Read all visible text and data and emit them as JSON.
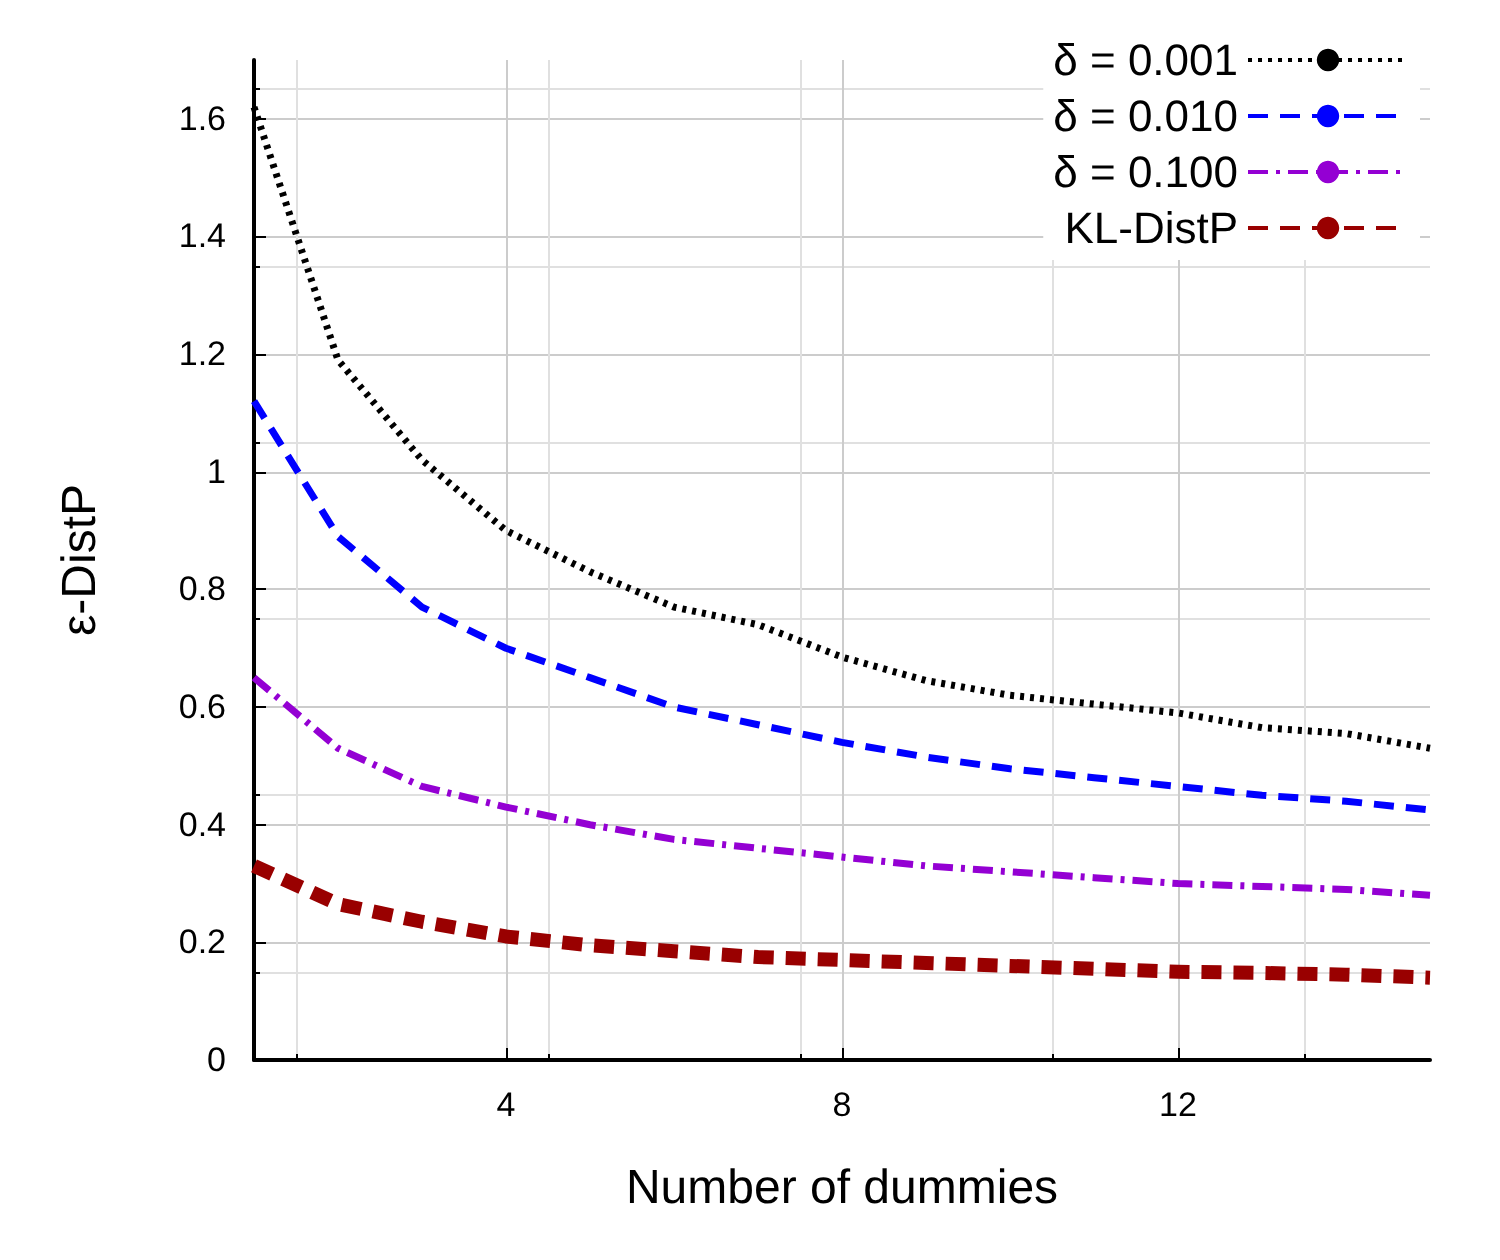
{
  "chart_data": {
    "type": "line",
    "xlabel": "Number of dummies",
    "ylabel": "ε-DistP",
    "x": [
      1,
      2,
      3,
      4,
      5,
      6,
      7,
      8,
      9,
      10,
      11,
      12,
      13,
      14,
      15
    ],
    "series": [
      {
        "name": "δ = 0.001",
        "color": "#000000",
        "line_style": "dotted",
        "values": [
          1.62,
          1.19,
          1.02,
          0.9,
          0.83,
          0.77,
          0.74,
          0.685,
          0.645,
          0.62,
          0.605,
          0.59,
          0.565,
          0.555,
          0.53
        ]
      },
      {
        "name": "δ = 0.010",
        "color": "#0000ff",
        "line_style": "dashed",
        "values": [
          1.12,
          0.89,
          0.77,
          0.7,
          0.65,
          0.6,
          0.57,
          0.54,
          0.515,
          0.495,
          0.48,
          0.465,
          0.45,
          0.44,
          0.425
        ]
      },
      {
        "name": "δ = 0.100",
        "color": "#9400d3",
        "line_style": "dashdot",
        "values": [
          0.65,
          0.53,
          0.465,
          0.43,
          0.4,
          0.375,
          0.36,
          0.345,
          0.33,
          0.32,
          0.31,
          0.3,
          0.295,
          0.29,
          0.28
        ]
      },
      {
        "name": "KL-DistP",
        "color": "#990000",
        "line_style": "dashed",
        "values": [
          0.33,
          0.265,
          0.235,
          0.21,
          0.195,
          0.185,
          0.175,
          0.17,
          0.165,
          0.16,
          0.155,
          0.15,
          0.148,
          0.145,
          0.14
        ]
      }
    ],
    "xlim": [
      1,
      15
    ],
    "xticks": [
      4,
      8,
      12
    ],
    "ylim": [
      0,
      1.7
    ],
    "yticks": [
      0,
      0.2,
      0.4,
      0.6,
      0.8,
      1,
      1.2,
      1.4,
      1.6
    ],
    "grid": true,
    "legend": "top right",
    "marker": "none"
  }
}
